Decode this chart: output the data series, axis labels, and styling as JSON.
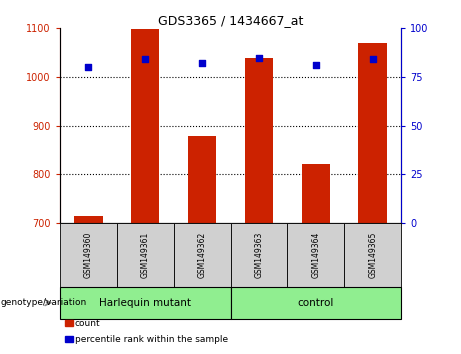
{
  "title": "GDS3365 / 1434667_at",
  "samples": [
    "GSM149360",
    "GSM149361",
    "GSM149362",
    "GSM149363",
    "GSM149364",
    "GSM149365"
  ],
  "bar_values": [
    715,
    1098,
    878,
    1040,
    822,
    1070
  ],
  "percentile_values": [
    80,
    84,
    82,
    85,
    81,
    84
  ],
  "bar_color": "#cc2200",
  "dot_color": "#0000cc",
  "ylim_left": [
    700,
    1100
  ],
  "ylim_right": [
    0,
    100
  ],
  "yticks_left": [
    700,
    800,
    900,
    1000,
    1100
  ],
  "yticks_right": [
    0,
    25,
    50,
    75,
    100
  ],
  "group_configs": [
    {
      "start": 0,
      "end": 2,
      "label": "Harlequin mutant"
    },
    {
      "start": 3,
      "end": 5,
      "label": "control"
    }
  ],
  "group_label": "genotype/variation",
  "legend_items": [
    "count",
    "percentile rank within the sample"
  ],
  "bar_color_legend": "#cc2200",
  "dot_color_legend": "#0000cc",
  "sample_box_color": "#d0d0d0",
  "group_box_color": "#90ee90"
}
